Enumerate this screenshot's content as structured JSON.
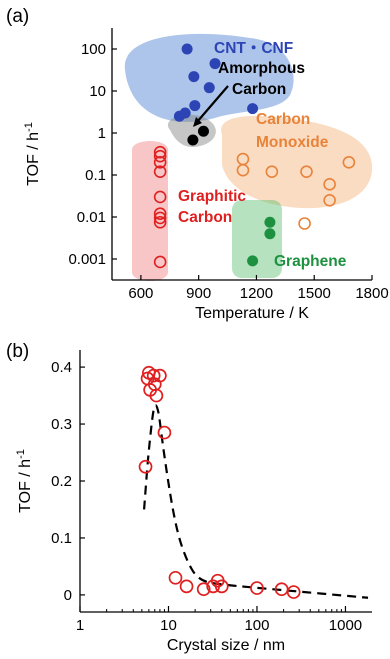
{
  "chart_data": [
    {
      "panel_label": "(a)",
      "type": "scatter",
      "xlabel": "Temperature / K",
      "ylabel": "TOF / h",
      "ylabel_sup": "-1",
      "xlim": [
        450,
        1800
      ],
      "ylim_log10": [
        -3.5,
        2.5
      ],
      "y_scale": "log",
      "xticks": [
        600,
        900,
        1200,
        1500,
        1800
      ],
      "yticks": [
        {
          "value": 100,
          "label": "100"
        },
        {
          "value": 10,
          "label": "10"
        },
        {
          "value": 1,
          "label": "1"
        },
        {
          "value": 0.1,
          "label": "0.1"
        },
        {
          "value": 0.01,
          "label": "0.01"
        },
        {
          "value": 0.001,
          "label": "0.001"
        }
      ],
      "grid": false,
      "series": [
        {
          "name": "CNT・CNF",
          "color": "#2d44b5",
          "region_color": "#4a7fd0",
          "marker": "filled",
          "points": [
            [
              840,
              100
            ],
            [
              985,
              45
            ],
            [
              875,
              22
            ],
            [
              955,
              12
            ],
            [
              880,
              4.5
            ],
            [
              800,
              2.5
            ],
            [
              830,
              3
            ],
            [
              1180,
              3.8
            ]
          ]
        },
        {
          "name": "Amorphous Carbon",
          "color": "#000000",
          "region_color": "#808080",
          "marker": "filled",
          "points": [
            [
              870,
              0.68
            ],
            [
              925,
              1.1
            ]
          ]
        },
        {
          "name": "Carbon Monoxide",
          "color": "#e8833a",
          "region_color": "#f5b27a",
          "marker": "open",
          "points": [
            [
              1130,
              0.24
            ],
            [
              1130,
              0.13
            ],
            [
              1280,
              0.12
            ],
            [
              1460,
              0.12
            ],
            [
              1580,
              0.06
            ],
            [
              1580,
              0.025
            ],
            [
              1680,
              0.2
            ],
            [
              1450,
              0.007
            ]
          ]
        },
        {
          "name": "Graphitic Carbon",
          "color": "#e02020",
          "region_color": "#f08080",
          "marker": "open",
          "points": [
            [
              700,
              0.35
            ],
            [
              700,
              0.28
            ],
            [
              700,
              0.2
            ],
            [
              700,
              0.12
            ],
            [
              700,
              0.03
            ],
            [
              700,
              0.012
            ],
            [
              700,
              0.0095
            ],
            [
              700,
              0.0075
            ],
            [
              700,
              0.00085
            ]
          ]
        },
        {
          "name": "Graphene",
          "color": "#1e9140",
          "region_color": "#5fbf70",
          "marker": "filled",
          "points": [
            [
              1270,
              0.0075
            ],
            [
              1270,
              0.004
            ],
            [
              1180,
              0.0009
            ]
          ]
        }
      ]
    },
    {
      "panel_label": "(b)",
      "type": "scatter",
      "xlabel": "Crystal size / nm",
      "ylabel": "TOF / h",
      "ylabel_sup": "-1",
      "x_scale": "log",
      "xlim_log10": [
        0,
        3.3
      ],
      "ylim": [
        -0.03,
        0.43
      ],
      "xticks": [
        {
          "value": 1,
          "label": "1"
        },
        {
          "value": 10,
          "label": "10"
        },
        {
          "value": 100,
          "label": "100"
        },
        {
          "value": 1000,
          "label": "1000"
        }
      ],
      "yticks": [
        0,
        0.1,
        0.2,
        0.3,
        0.4
      ],
      "ytick_labels": [
        "0",
        "0.1",
        "0.2",
        "0.3",
        "0.4"
      ],
      "grid": false,
      "series": [
        {
          "color": "#e02020",
          "marker": "open",
          "points": [
            [
              5.5,
              0.225
            ],
            [
              5.8,
              0.38
            ],
            [
              6,
              0.39
            ],
            [
              6.2,
              0.36
            ],
            [
              6.8,
              0.385
            ],
            [
              7,
              0.37
            ],
            [
              7.3,
              0.35
            ],
            [
              8,
              0.385
            ],
            [
              9,
              0.285
            ],
            [
              12,
              0.03
            ],
            [
              16,
              0.015
            ],
            [
              25,
              0.01
            ],
            [
              32,
              0.015
            ],
            [
              36,
              0.025
            ],
            [
              40,
              0.015
            ],
            [
              100,
              0.012
            ],
            [
              190,
              0.01
            ],
            [
              260,
              0.005
            ]
          ]
        },
        {
          "style": "dashed",
          "color": "#000000",
          "points": [
            [
              5.3,
              0.15
            ],
            [
              6,
              0.26
            ],
            [
              7.2,
              0.36
            ],
            [
              9,
              0.24
            ],
            [
              12,
              0.12
            ],
            [
              16,
              0.06
            ],
            [
              22,
              0.025
            ],
            [
              40,
              0.018
            ],
            [
              150,
              0.01
            ],
            [
              1800,
              -0.005
            ]
          ]
        }
      ]
    }
  ]
}
